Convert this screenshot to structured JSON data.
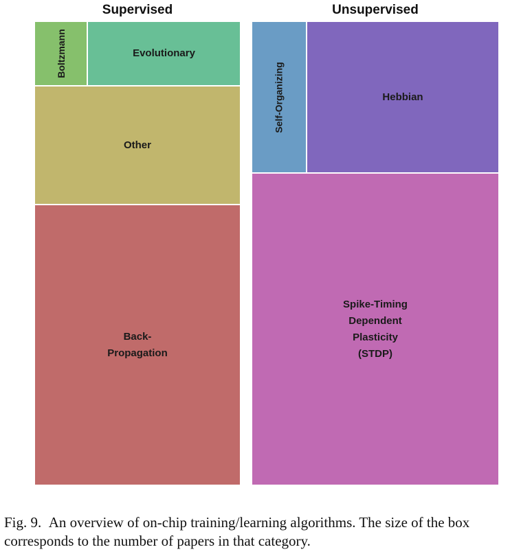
{
  "chart_data": {
    "type": "treemap",
    "groups": [
      {
        "name": "Supervised",
        "items": [
          {
            "label": "Boltzmann",
            "color": "#86c06c",
            "orientation": "vertical"
          },
          {
            "label": "Evolutionary",
            "color": "#68bf96",
            "orientation": "horizontal"
          },
          {
            "label": "Other",
            "color": "#c1b66d",
            "orientation": "horizontal"
          },
          {
            "label": "Back-\nPropagation",
            "color": "#c06b6a",
            "orientation": "horizontal"
          }
        ]
      },
      {
        "name": "Unsupervised",
        "items": [
          {
            "label": "Self-Organizing",
            "color": "#6a9cc5",
            "orientation": "vertical"
          },
          {
            "label": "Hebbian",
            "color": "#8067bd",
            "orientation": "horizontal"
          },
          {
            "label": "Spike-Timing\nDependent\nPlasticity\n(STDP)",
            "color": "#c06ab3",
            "orientation": "horizontal"
          }
        ]
      }
    ]
  },
  "caption": {
    "text": "Fig. 9.  An overview of on-chip training/learning algorithms. The size of the box corresponds to the number of papers in that category."
  }
}
